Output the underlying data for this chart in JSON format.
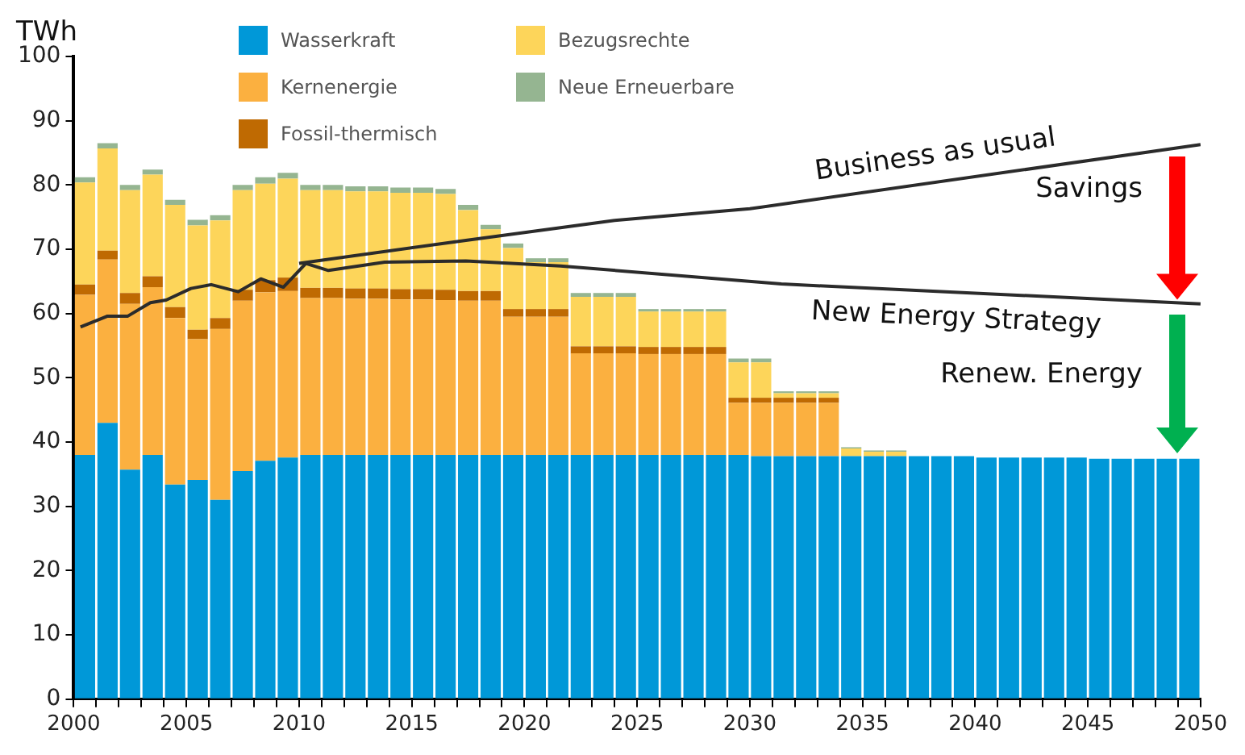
{
  "chart_data": {
    "type": "bar",
    "stacked": true,
    "ylabel": "TWh",
    "legend": "top",
    "marker": "none",
    "grid": false,
    "x": [
      2000.5,
      2001.5,
      2002.5,
      2003.5,
      2004.5,
      2005.5,
      2006.5,
      2007.5,
      2008.5,
      2009.5,
      2010.5,
      2011.5,
      2012.5,
      2013.5,
      2014.5,
      2015.5,
      2016.5,
      2017.5,
      2018.5,
      2019.5,
      2020.5,
      2021.5,
      2022.5,
      2023.5,
      2024.5,
      2025.5,
      2026.5,
      2027.5,
      2028.5,
      2029.5,
      2030.5,
      2031.5,
      2032.5,
      2033.5,
      2034.5,
      2035.5,
      2036.5,
      2037.5,
      2038.5,
      2039.5,
      2040.5,
      2041.5,
      2042.5,
      2043.5,
      2044.5,
      2045.5,
      2046.5,
      2047.5,
      2048.5,
      2049.5
    ],
    "xlim": [
      2000,
      2050
    ],
    "xticks": [
      2000,
      {
        "value": 2001,
        "label": null
      },
      {
        "value": 2002,
        "label": null
      },
      {
        "value": 2003,
        "label": null
      },
      {
        "value": 2004,
        "label": null
      },
      2005,
      {
        "value": 2006,
        "label": null
      },
      {
        "value": 2007,
        "label": null
      },
      {
        "value": 2008,
        "label": null
      },
      {
        "value": 2009,
        "label": null
      },
      2010,
      {
        "value": 2011,
        "label": null
      },
      {
        "value": 2012,
        "label": null
      },
      {
        "value": 2013,
        "label": null
      },
      {
        "value": 2014,
        "label": null
      },
      2015,
      {
        "value": 2016,
        "label": null
      },
      {
        "value": 2017,
        "label": null
      },
      {
        "value": 2018,
        "label": null
      },
      {
        "value": 2019,
        "label": null
      },
      2020,
      {
        "value": 2021,
        "label": null
      },
      {
        "value": 2022,
        "label": null
      },
      {
        "value": 2023,
        "label": null
      },
      {
        "value": 2024,
        "label": null
      },
      2025,
      {
        "value": 2026,
        "label": null
      },
      {
        "value": 2027,
        "label": null
      },
      {
        "value": 2028,
        "label": null
      },
      {
        "value": 2029,
        "label": null
      },
      2030,
      {
        "value": 2031,
        "label": null
      },
      {
        "value": 2032,
        "label": null
      },
      {
        "value": 2033,
        "label": null
      },
      {
        "value": 2034,
        "label": null
      },
      2035,
      {
        "value": 2036,
        "label": null
      },
      {
        "value": 2037,
        "label": null
      },
      {
        "value": 2038,
        "label": null
      },
      {
        "value": 2039,
        "label": null
      },
      2040,
      {
        "value": 2041,
        "label": null
      },
      {
        "value": 2042,
        "label": null
      },
      {
        "value": 2043,
        "label": null
      },
      {
        "value": 2044,
        "label": null
      },
      2045,
      {
        "value": 2046,
        "label": null
      },
      {
        "value": 2047,
        "label": null
      },
      {
        "value": 2048,
        "label": null
      },
      {
        "value": 2049,
        "label": null
      },
      2050
    ],
    "ylim": [
      0,
      100
    ],
    "yticks": [
      0,
      10,
      20,
      30,
      40,
      50,
      60,
      70,
      80,
      90,
      100
    ],
    "series": [
      {
        "name": "Wasserkraft",
        "color": "#0098d8",
        "values": [
          38,
          43,
          35.7,
          38,
          33.4,
          34.1,
          31,
          35.5,
          37.1,
          37.6,
          38,
          38,
          38,
          38,
          38,
          38,
          38,
          38,
          38,
          38,
          38,
          38,
          38,
          38,
          38,
          38,
          38,
          38,
          38,
          38,
          37.8,
          37.8,
          37.8,
          37.8,
          37.8,
          37.8,
          37.8,
          37.8,
          37.8,
          37.8,
          37.6,
          37.6,
          37.6,
          37.6,
          37.6,
          37.4,
          37.4,
          37.4,
          37.4,
          37.4
        ]
      },
      {
        "name": "Kernenergie",
        "color": "#fbb040",
        "values": [
          24.9,
          25.4,
          25.8,
          26.1,
          25.9,
          21.9,
          26.6,
          26.5,
          26.2,
          25.9,
          24.4,
          24.4,
          24.3,
          24.3,
          24.2,
          24.2,
          24.1,
          24,
          24,
          21.5,
          21.5,
          21.5,
          15.8,
          15.8,
          15.8,
          15.7,
          15.7,
          15.7,
          15.7,
          8.1,
          8.3,
          8.3,
          8.3,
          8.3,
          0,
          0,
          0,
          0,
          0,
          0,
          0,
          0,
          0,
          0,
          0,
          0,
          0,
          0,
          0,
          0
        ]
      },
      {
        "name": "Fossil-thermisch",
        "color": "#bf6a02",
        "values": [
          1.6,
          1.4,
          1.7,
          1.7,
          1.7,
          1.5,
          1.7,
          1.7,
          1.9,
          2.1,
          1.6,
          1.6,
          1.6,
          1.6,
          1.6,
          1.6,
          1.6,
          1.5,
          1.5,
          1.2,
          1.2,
          1.2,
          1.1,
          1.1,
          1.1,
          1.1,
          1.1,
          1.1,
          1.1,
          0.8,
          0.8,
          0.8,
          0.8,
          0.8,
          0,
          0,
          0,
          0,
          0,
          0,
          0,
          0,
          0,
          0,
          0,
          0,
          0,
          0,
          0,
          0
        ]
      },
      {
        "name": "Bezugsrechte",
        "color": "#fdd55a",
        "values": [
          15.9,
          15.9,
          16,
          15.8,
          15.9,
          16.2,
          15.2,
          15.5,
          15,
          15.4,
          15.2,
          15.2,
          15.1,
          15.1,
          15,
          15,
          14.9,
          12.6,
          9.6,
          9.5,
          7.3,
          7.3,
          7.7,
          7.7,
          7.7,
          5.5,
          5.5,
          5.5,
          5.5,
          5.5,
          5.5,
          0.7,
          0.7,
          0.7,
          1.2,
          0.7,
          0.7,
          0,
          0,
          0,
          0,
          0,
          0,
          0,
          0,
          0,
          0,
          0,
          0,
          0
        ]
      },
      {
        "name": "Neue Erneuerbare",
        "color": "#95b591",
        "values": [
          0.8,
          0.8,
          0.8,
          0.8,
          0.8,
          0.9,
          0.8,
          0.8,
          1,
          0.9,
          0.8,
          0.8,
          0.8,
          0.8,
          0.8,
          0.8,
          0.8,
          0.8,
          0.7,
          0.7,
          0.6,
          0.6,
          0.6,
          0.6,
          0.6,
          0.4,
          0.4,
          0.4,
          0.4,
          0.6,
          0.6,
          0.3,
          0.3,
          0.3,
          0.2,
          0.2,
          0.2,
          0,
          0,
          0,
          0,
          0,
          0,
          0,
          0,
          0,
          0,
          0,
          0,
          0
        ]
      },
      {
        "name": "Business as usual",
        "type": "line",
        "color": "#2b2b2b",
        "x": [
          2010,
          2017,
          2024,
          2030,
          2050
        ],
        "values": [
          67.8,
          71.2,
          74.5,
          76.3,
          86.3
        ]
      },
      {
        "name": "New Energy Strategy",
        "type": "line",
        "color": "#2b2b2b",
        "x": [
          2000.3,
          2001.5,
          2002.4,
          2003.4,
          2004.1,
          2005.2,
          2006.1,
          2007.3,
          2008.3,
          2009.3,
          2010.3,
          2011.3,
          2013.8,
          2017.4,
          2021.6,
          2031.4,
          2050
        ],
        "values": [
          57.9,
          59.6,
          59.6,
          61.7,
          62.1,
          63.9,
          64.5,
          63.4,
          65.4,
          64.1,
          67.8,
          66.7,
          68,
          68.2,
          67.4,
          64.6,
          61.5
        ]
      }
    ],
    "annotations": [
      "Savings",
      "Renew. Energy"
    ]
  }
}
